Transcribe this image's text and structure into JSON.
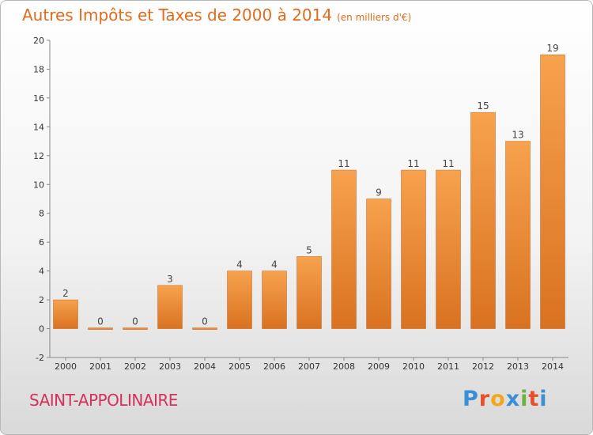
{
  "chart_data": {
    "type": "bar",
    "title": "Autres Impôts et Taxes de 2000 à 2014",
    "subtitle": "(en milliers d'€)",
    "categories": [
      "2000",
      "2001",
      "2002",
      "2003",
      "2004",
      "2005",
      "2006",
      "2007",
      "2008",
      "2009",
      "2010",
      "2011",
      "2012",
      "2013",
      "2014"
    ],
    "values": [
      2,
      0,
      0,
      3,
      0,
      4,
      4,
      5,
      11,
      9,
      11,
      11,
      15,
      13,
      19
    ],
    "ylim": [
      -2,
      20
    ],
    "yticks": [
      -2,
      0,
      2,
      4,
      6,
      8,
      10,
      12,
      14,
      16,
      18,
      20
    ],
    "grid": false,
    "colors": {
      "bar_light": "#f7a24e",
      "bar_dark": "#d97220",
      "title": "#e26b1c"
    }
  },
  "footer": {
    "commune": "SAINT-APPOLINAIRE",
    "logo": "Proxiti",
    "logo_colors": [
      "#3b8fd6",
      "#e94e2a",
      "#f3a81c",
      "#3b8fd6",
      "#6cb33f",
      "#e94e2a",
      "#3b8fd6"
    ]
  }
}
